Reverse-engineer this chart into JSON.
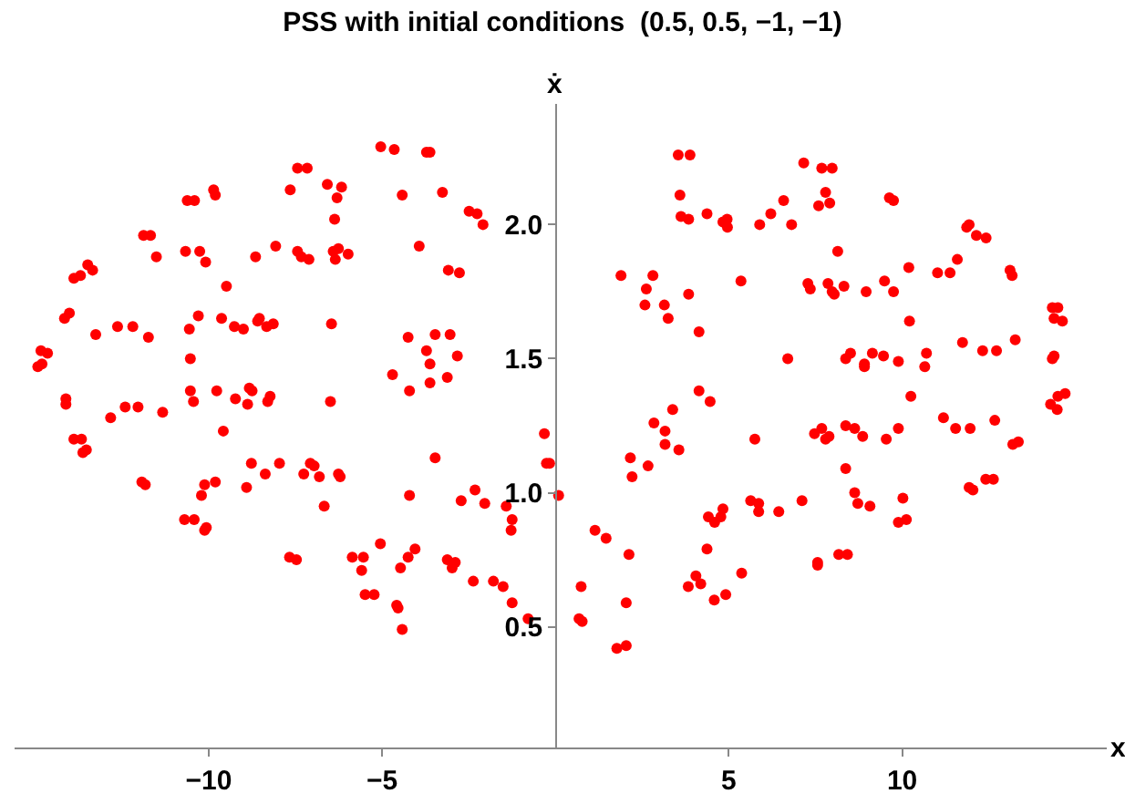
{
  "chart_data": {
    "type": "scatter",
    "title": "PSS with initial conditions  (0.5, 0.5, −1, −1)",
    "xlabel": "x",
    "ylabel": "ẋ",
    "xlim": [
      -15.6,
      15.9
    ],
    "ylim": [
      0.05,
      2.45
    ],
    "xticks": [
      -10,
      -5,
      5,
      10
    ],
    "yticks": [
      0.5,
      {
        "value": 1,
        "label": "1.0"
      },
      1.5,
      {
        "value": 2,
        "label": "2.0"
      }
    ],
    "marker": "circle",
    "series": [
      {
        "color": "#ff0000",
        "x": [
          -5.04,
          -7.44,
          -7.16,
          -7.65,
          -6.58,
          -6.17,
          -6.3,
          -9.86,
          -9.81,
          -10.62,
          -10.41,
          -6.37,
          -11.88,
          -11.68,
          -10.67,
          -10.26,
          -10.09,
          -11.51,
          -8.65,
          -8.07,
          -7.44,
          -7.33,
          -7.11,
          -6.41,
          -6.26,
          -6.35,
          -5.98,
          -13.49,
          -13.35,
          -13.89,
          -13.7,
          -9.49,
          -14.16,
          -14.02,
          -13.26,
          -12.63,
          -12.19,
          -11.74,
          -10.56,
          -10.3,
          -9.63,
          -9.26,
          -9.0,
          -8.59,
          -8.54,
          -8.33,
          -8.14,
          -6.46,
          -14.84,
          -14.65,
          -14.93,
          -14.81,
          -10.53,
          -4.65,
          -3.72,
          -3.62,
          -4.42,
          -3.26,
          -2.49,
          -2.26,
          -2.09,
          -3.93,
          -3.09,
          -2.77,
          -4.25,
          -3.47,
          -3.04,
          -3.72,
          -3.62,
          -2.83,
          -4.7,
          -3.12,
          3.54,
          3.88,
          3.59,
          3.62,
          3.84,
          4.37,
          4.95,
          4.83,
          4.96,
          1.89,
          2.81,
          2.62,
          2.58,
          3.14,
          3.25,
          3.84,
          4.14,
          5.35,
          7.16,
          7.68,
          7.98,
          7.79,
          7.59,
          7.91,
          6.58,
          6.21,
          5.89,
          6.81,
          9.63,
          9.75,
          8.14,
          11.86,
          11.93,
          12.14,
          12.42,
          11.59,
          11.02,
          11.38,
          10.19,
          13.11,
          13.17,
          7.28,
          7.35,
          7.86,
          7.98,
          8.04,
          8.32,
          8.96,
          9.49,
          9.75,
          14.33,
          14.49,
          14.38,
          14.62,
          10.21,
          6.7,
          8.37,
          8.51,
          8.91,
          8.91,
          9.14,
          9.46,
          9.89,
          10.7,
          10.65,
          11.74,
          12.32,
          12.72,
          13.26,
          14.33,
          14.38,
          -14.12,
          -14.12,
          -10.53,
          -10.44,
          -9.77,
          -9.23,
          -8.83,
          -8.75,
          -8.88,
          -8.23,
          -8.3,
          -6.49,
          -12.83,
          -12.41,
          -12.04,
          -11.33,
          -13.89,
          -13.67,
          -13.53,
          -13.63,
          -9.58,
          -8.77,
          -7.96,
          -8.37,
          -8.91,
          -7.26,
          -7.07,
          -6.96,
          -6.81,
          -6.26,
          -6.21,
          -11.93,
          -11.83,
          -10.12,
          -9.81,
          -10.21,
          -6.67,
          -10.7,
          -10.42,
          -10.12,
          -10.07,
          -5.05,
          -7.67,
          -7.47,
          -5.86,
          -5.54,
          -5.59,
          -5.49,
          -5.23,
          -4.21,
          -3.62,
          -3.47,
          -4.21,
          -0.32,
          -0.26,
          -0.17,
          -2.72,
          -2.32,
          -2.04,
          -1.42,
          -1.25,
          -1.28,
          0.09,
          -4.25,
          -4.05,
          -4.47,
          -3.12,
          -2.89,
          -2.98,
          -2.37,
          -1.79,
          -1.51,
          -1.25,
          -4.58,
          -4.54,
          -4.42,
          -0.79,
          4.14,
          4.46,
          3.38,
          2.84,
          3.16,
          3.16,
          3.56,
          2.16,
          2.21,
          2.67,
          1.14,
          1.46,
          2.12,
          4.41,
          4.59,
          4.77,
          4.83,
          4.37,
          4.05,
          4.19,
          3.83,
          4.58,
          4.91,
          5.37,
          0.74,
          0.68,
          0.77,
          2.04,
          1.77,
          2.04,
          10.25,
          5.75,
          7.47,
          7.68,
          7.79,
          7.89,
          8.37,
          8.63,
          8.86,
          9.54,
          9.89,
          11.19,
          11.54,
          11.96,
          12.67,
          14.28,
          14.47,
          14.49,
          14.7,
          13.19,
          13.35,
          8.37,
          8.63,
          8.72,
          9.07,
          10.02,
          9.89,
          10.12,
          5.63,
          5.86,
          5.86,
          6.44,
          7.11,
          11.93,
          12.04,
          12.41,
          12.63,
          7.56,
          7.56,
          8.17,
          8.42
        ],
        "values": [
          2.29,
          2.21,
          2.21,
          2.13,
          2.15,
          2.14,
          2.1,
          2.13,
          2.11,
          2.09,
          2.09,
          2.02,
          1.96,
          1.96,
          1.9,
          1.9,
          1.86,
          1.88,
          1.88,
          1.92,
          1.9,
          1.88,
          1.87,
          1.9,
          1.91,
          1.87,
          1.89,
          1.85,
          1.83,
          1.8,
          1.81,
          1.77,
          1.65,
          1.67,
          1.59,
          1.62,
          1.62,
          1.58,
          1.61,
          1.66,
          1.65,
          1.62,
          1.61,
          1.64,
          1.65,
          1.62,
          1.63,
          1.63,
          1.53,
          1.52,
          1.47,
          1.48,
          1.5,
          2.28,
          2.27,
          2.27,
          2.11,
          2.12,
          2.05,
          2.04,
          2.0,
          1.92,
          1.83,
          1.82,
          1.58,
          1.59,
          1.59,
          1.53,
          1.48,
          1.51,
          1.44,
          1.43,
          2.26,
          2.26,
          2.11,
          2.03,
          2.02,
          2.04,
          2.02,
          2.01,
          1.99,
          1.81,
          1.81,
          1.76,
          1.7,
          1.7,
          1.65,
          1.74,
          1.6,
          1.79,
          2.23,
          2.21,
          2.21,
          2.12,
          2.07,
          2.08,
          2.09,
          2.04,
          2.0,
          2.0,
          2.1,
          2.09,
          1.9,
          1.99,
          2.0,
          1.96,
          1.95,
          1.87,
          1.82,
          1.82,
          1.84,
          1.83,
          1.81,
          1.78,
          1.76,
          1.78,
          1.75,
          1.74,
          1.77,
          1.75,
          1.79,
          1.75,
          1.69,
          1.69,
          1.65,
          1.64,
          1.64,
          1.5,
          1.5,
          1.52,
          1.48,
          1.47,
          1.52,
          1.51,
          1.49,
          1.52,
          1.47,
          1.56,
          1.53,
          1.53,
          1.57,
          1.5,
          1.51,
          1.35,
          1.33,
          1.38,
          1.34,
          1.38,
          1.35,
          1.39,
          1.38,
          1.33,
          1.36,
          1.34,
          1.34,
          1.28,
          1.32,
          1.32,
          1.3,
          1.2,
          1.2,
          1.16,
          1.15,
          1.23,
          1.11,
          1.11,
          1.07,
          1.02,
          1.07,
          1.11,
          1.1,
          1.06,
          1.07,
          1.06,
          1.04,
          1.03,
          1.03,
          1.04,
          0.99,
          0.95,
          0.9,
          0.9,
          0.86,
          0.87,
          0.81,
          0.76,
          0.75,
          0.76,
          0.76,
          0.71,
          0.62,
          0.62,
          1.38,
          1.41,
          1.13,
          0.99,
          1.22,
          1.11,
          1.11,
          0.97,
          1.01,
          0.96,
          0.95,
          0.9,
          0.86,
          0.99,
          0.76,
          0.79,
          0.72,
          0.75,
          0.74,
          0.72,
          0.67,
          0.67,
          0.65,
          0.59,
          0.58,
          0.57,
          0.49,
          0.53,
          1.38,
          1.34,
          1.31,
          1.26,
          1.23,
          1.18,
          1.16,
          1.13,
          1.06,
          1.1,
          0.86,
          0.83,
          0.77,
          0.91,
          0.89,
          0.91,
          0.94,
          0.79,
          0.69,
          0.66,
          0.65,
          0.6,
          0.62,
          0.7,
          0.65,
          0.53,
          0.52,
          0.59,
          0.42,
          0.43,
          1.36,
          1.2,
          1.22,
          1.24,
          1.2,
          1.21,
          1.25,
          1.24,
          1.21,
          1.2,
          1.24,
          1.28,
          1.24,
          1.24,
          1.27,
          1.33,
          1.31,
          1.36,
          1.37,
          1.18,
          1.19,
          1.09,
          1.0,
          0.96,
          0.95,
          0.98,
          0.89,
          0.9,
          0.97,
          0.96,
          0.93,
          0.93,
          0.97,
          1.02,
          1.01,
          1.05,
          1.05,
          0.74,
          0.73,
          0.77,
          0.77
        ]
      }
    ]
  }
}
